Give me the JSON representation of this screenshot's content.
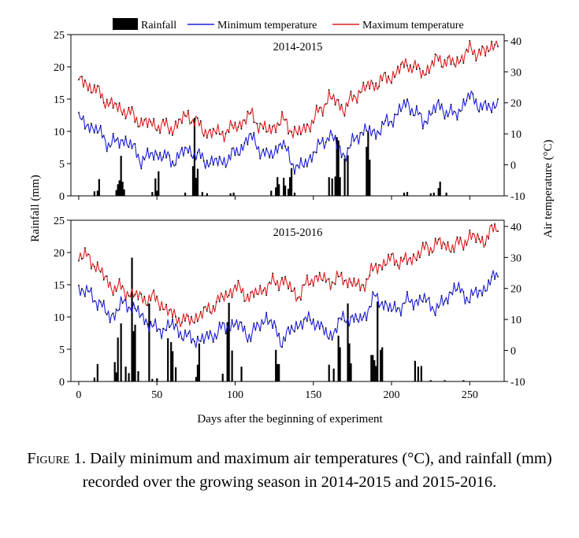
{
  "chart_data": {
    "type": "bar+line",
    "shared": {
      "xlabel": "Days after the beginning of experiment",
      "ylabel_left": "Rainfall (mm)",
      "ylabel_right": "Air temperature (°C)",
      "xlim": [
        -5,
        272
      ],
      "xticks": [
        0,
        50,
        100,
        150,
        200,
        250
      ],
      "ylim_left": [
        0,
        25
      ],
      "yticks_left": [
        0,
        5,
        10,
        15,
        20,
        25
      ],
      "ylim_right": [
        -10,
        42
      ],
      "yticks_right": [
        -10,
        0,
        10,
        20,
        30,
        40
      ],
      "legend": {
        "placement": "top",
        "entries": [
          {
            "name": "Rainfall",
            "kind": "bar",
            "color": "#000000"
          },
          {
            "name": "Minimum temperature",
            "kind": "line",
            "color": "#1f1fe0"
          },
          {
            "name": "Maximum temperature",
            "kind": "line",
            "color": "#e01f1f"
          }
        ]
      }
    },
    "panels": [
      {
        "title": "2014-2015",
        "rainfall_mm": [
          [
            10,
            0.7
          ],
          [
            12,
            0.8
          ],
          [
            13,
            2.6
          ],
          [
            24,
            0.9
          ],
          [
            25,
            1.8
          ],
          [
            26,
            2.4
          ],
          [
            27,
            6.2
          ],
          [
            28,
            2.2
          ],
          [
            29,
            1.0
          ],
          [
            47,
            0.6
          ],
          [
            49,
            2.7
          ],
          [
            50,
            0.8
          ],
          [
            51,
            3.8
          ],
          [
            68,
            0.5
          ],
          [
            73,
            4.6
          ],
          [
            74,
            12.1
          ],
          [
            75,
            2.8
          ],
          [
            76,
            4.2
          ],
          [
            79,
            0.6
          ],
          [
            82,
            0.4
          ],
          [
            97,
            0.4
          ],
          [
            99,
            0.5
          ],
          [
            123,
            0.8
          ],
          [
            126,
            1.3
          ],
          [
            127,
            2.9
          ],
          [
            128,
            1.8
          ],
          [
            131,
            2.8
          ],
          [
            132,
            1.6
          ],
          [
            134,
            1.1
          ],
          [
            135,
            2.9
          ],
          [
            136,
            4.3
          ],
          [
            138,
            0.5
          ],
          [
            160,
            2.9
          ],
          [
            162,
            2.7
          ],
          [
            164,
            3.0
          ],
          [
            165,
            9.1
          ],
          [
            166,
            8.6
          ],
          [
            167,
            2.9
          ],
          [
            170,
            5.8
          ],
          [
            172,
            6.3
          ],
          [
            184,
            7.6
          ],
          [
            185,
            10.0
          ],
          [
            186,
            5.6
          ],
          [
            208,
            0.5
          ],
          [
            210,
            0.6
          ],
          [
            225,
            0.4
          ],
          [
            227,
            0.5
          ],
          [
            230,
            1.2
          ],
          [
            231,
            2.2
          ],
          [
            235,
            0.5
          ]
        ],
        "min_temperature": [
          [
            0,
            14.3
          ],
          [
            10,
            11.9
          ],
          [
            20,
            6.7
          ],
          [
            30,
            8.2
          ],
          [
            40,
            1.8
          ],
          [
            50,
            3.8
          ],
          [
            60,
            1.2
          ],
          [
            70,
            5.2
          ],
          [
            80,
            1.4
          ],
          [
            90,
            0.7
          ],
          [
            100,
            3.5
          ],
          [
            110,
            9.2
          ],
          [
            120,
            2.4
          ],
          [
            130,
            6.8
          ],
          [
            140,
            -1.7
          ],
          [
            150,
            3.5
          ],
          [
            160,
            9.9
          ],
          [
            170,
            2.9
          ],
          [
            180,
            10.8
          ],
          [
            190,
            10.5
          ],
          [
            200,
            14.6
          ],
          [
            210,
            20.1
          ],
          [
            220,
            13.8
          ],
          [
            230,
            19.1
          ],
          [
            240,
            15.7
          ],
          [
            250,
            22.2
          ],
          [
            260,
            17.9
          ],
          [
            268,
            20.1
          ]
        ],
        "max_temperature": [
          [
            0,
            27.6
          ],
          [
            10,
            24.4
          ],
          [
            20,
            19.6
          ],
          [
            30,
            17.4
          ],
          [
            40,
            13.8
          ],
          [
            50,
            12.9
          ],
          [
            60,
            11.8
          ],
          [
            70,
            16.3
          ],
          [
            80,
            10.9
          ],
          [
            90,
            10.1
          ],
          [
            100,
            12.1
          ],
          [
            110,
            16.1
          ],
          [
            120,
            10.7
          ],
          [
            130,
            14.3
          ],
          [
            140,
            9.8
          ],
          [
            150,
            14.3
          ],
          [
            160,
            22.0
          ],
          [
            170,
            18.2
          ],
          [
            180,
            24.1
          ],
          [
            190,
            26.3
          ],
          [
            200,
            28.5
          ],
          [
            210,
            32.9
          ],
          [
            220,
            29.5
          ],
          [
            230,
            34.2
          ],
          [
            240,
            32.6
          ],
          [
            250,
            36.9
          ],
          [
            260,
            36.1
          ],
          [
            268,
            40.5
          ]
        ]
      },
      {
        "title": "2015-2016",
        "rainfall_mm": [
          [
            10,
            0.6
          ],
          [
            12,
            2.7
          ],
          [
            23,
            3.0
          ],
          [
            24,
            1.4
          ],
          [
            25,
            6.8
          ],
          [
            27,
            9.0
          ],
          [
            30,
            2.3
          ],
          [
            32,
            1.3
          ],
          [
            34,
            19.2
          ],
          [
            35,
            7.8
          ],
          [
            36,
            8.8
          ],
          [
            38,
            1.6
          ],
          [
            45,
            12.1
          ],
          [
            47,
            0.4
          ],
          [
            50,
            0.5
          ],
          [
            57,
            6.7
          ],
          [
            59,
            6.1
          ],
          [
            60,
            4.7
          ],
          [
            62,
            2.2
          ],
          [
            75,
            0.7
          ],
          [
            76,
            2.6
          ],
          [
            77,
            5.9
          ],
          [
            92,
            1.2
          ],
          [
            95,
            9.2
          ],
          [
            96,
            12.2
          ],
          [
            98,
            4.8
          ],
          [
            104,
            2.3
          ],
          [
            126,
            4.9
          ],
          [
            127,
            2.7
          ],
          [
            128,
            2.7
          ],
          [
            160,
            2.6
          ],
          [
            163,
            2.0
          ],
          [
            166,
            7.1
          ],
          [
            167,
            5.3
          ],
          [
            172,
            12.1
          ],
          [
            173,
            5.9
          ],
          [
            174,
            2.8
          ],
          [
            187,
            4.1
          ],
          [
            188,
            4.1
          ],
          [
            189,
            3.3
          ],
          [
            190,
            2.4
          ],
          [
            191,
            12.4
          ],
          [
            193,
            4.9
          ],
          [
            194,
            5.3
          ],
          [
            215,
            3.2
          ],
          [
            217,
            2.3
          ],
          [
            219,
            2.4
          ],
          [
            225,
            0.2
          ],
          [
            234,
            0.2
          ],
          [
            246,
            0.2
          ]
        ],
        "min_temperature": [
          [
            0,
            20.1
          ],
          [
            10,
            17.2
          ],
          [
            20,
            10.8
          ],
          [
            30,
            15.7
          ],
          [
            40,
            11.2
          ],
          [
            50,
            6.4
          ],
          [
            60,
            8.2
          ],
          [
            70,
            3.8
          ],
          [
            80,
            3.5
          ],
          [
            90,
            6.5
          ],
          [
            100,
            8.9
          ],
          [
            110,
            4.7
          ],
          [
            120,
            11.0
          ],
          [
            130,
            3.2
          ],
          [
            140,
            8.6
          ],
          [
            150,
            10.0
          ],
          [
            160,
            4.4
          ],
          [
            170,
            10.8
          ],
          [
            180,
            9.6
          ],
          [
            190,
            17.3
          ],
          [
            200,
            12.9
          ],
          [
            210,
            15.5
          ],
          [
            220,
            16.5
          ],
          [
            230,
            13.3
          ],
          [
            240,
            20.3
          ],
          [
            250,
            16.9
          ],
          [
            260,
            20.3
          ],
          [
            268,
            24.6
          ]
        ],
        "max_temperature": [
          [
            0,
            31.5
          ],
          [
            10,
            28.2
          ],
          [
            20,
            21.0
          ],
          [
            30,
            19.1
          ],
          [
            40,
            17.0
          ],
          [
            50,
            16.5
          ],
          [
            60,
            11.2
          ],
          [
            70,
            9.4
          ],
          [
            80,
            12.1
          ],
          [
            90,
            16.1
          ],
          [
            100,
            20.3
          ],
          [
            110,
            17.2
          ],
          [
            120,
            20.6
          ],
          [
            130,
            22.9
          ],
          [
            140,
            17.5
          ],
          [
            150,
            23.7
          ],
          [
            160,
            22.4
          ],
          [
            170,
            23.2
          ],
          [
            180,
            20.3
          ],
          [
            190,
            26.9
          ],
          [
            200,
            29.4
          ],
          [
            210,
            28.6
          ],
          [
            220,
            32.3
          ],
          [
            230,
            34.6
          ],
          [
            240,
            33.2
          ],
          [
            250,
            36.6
          ],
          [
            260,
            35.6
          ],
          [
            268,
            40.8
          ]
        ]
      }
    ]
  },
  "caption": {
    "label": "Figure 1.",
    "text": " Daily minimum and maximum air temperatures (°C), and rainfall (mm) recorded over the growing season in 2014-2015 and 2015-2016."
  }
}
